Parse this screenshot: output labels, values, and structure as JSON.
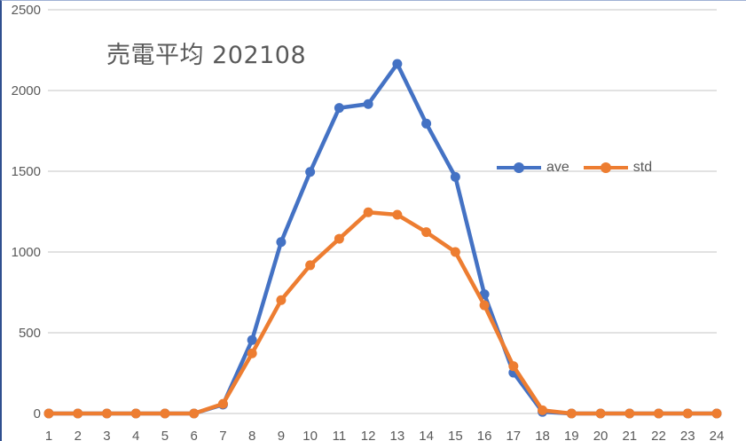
{
  "chart_data": {
    "type": "line",
    "title": "売電平均 202108",
    "xlabel": "",
    "ylabel": "",
    "x": [
      1,
      2,
      3,
      4,
      5,
      6,
      7,
      8,
      9,
      10,
      11,
      12,
      13,
      14,
      15,
      16,
      17,
      18,
      19,
      20,
      21,
      22,
      23,
      24
    ],
    "series": [
      {
        "name": "ave",
        "color": "#4472C4",
        "values": [
          0,
          0,
          0,
          0,
          0,
          0,
          55,
          455,
          1062,
          1496,
          1892,
          1916,
          2165,
          1795,
          1465,
          738,
          253,
          10,
          0,
          0,
          0,
          0,
          0,
          0
        ]
      },
      {
        "name": "std",
        "color": "#ED7D31",
        "values": [
          0,
          0,
          0,
          0,
          0,
          0,
          60,
          372,
          702,
          918,
          1082,
          1246,
          1231,
          1123,
          1000,
          670,
          293,
          20,
          0,
          0,
          0,
          0,
          0,
          0
        ]
      }
    ],
    "ylim": [
      0,
      2500
    ],
    "yticks": [
      0,
      500,
      1000,
      1500,
      2000,
      2500
    ],
    "grid": true,
    "legend_position": "inside-right"
  },
  "legend": {
    "ave": "ave",
    "std": "std"
  },
  "axis": {
    "y_labels": [
      "0",
      "500",
      "1000",
      "1500",
      "2000",
      "2500"
    ],
    "x_labels": [
      "1",
      "2",
      "3",
      "4",
      "5",
      "6",
      "7",
      "8",
      "9",
      "10",
      "11",
      "12",
      "13",
      "14",
      "15",
      "16",
      "17",
      "18",
      "19",
      "20",
      "21",
      "22",
      "23",
      "24"
    ]
  }
}
